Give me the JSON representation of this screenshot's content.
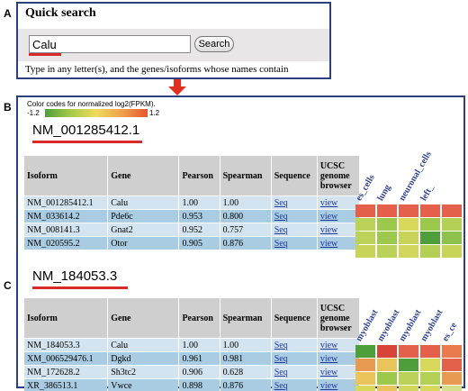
{
  "panels": {
    "a": "A",
    "b": "B",
    "c": "C"
  },
  "quick_search": {
    "title": "Quick search",
    "input_value": "Calu",
    "button_label": "Search",
    "help_text": "Type in any letter(s), and the genes/isoforms whose names contain"
  },
  "legend": {
    "caption": "Color codes for normalized log2(FPKM).",
    "min": "-1.2",
    "max": "1.2"
  },
  "columns": [
    "Isoform",
    "Gene",
    "Pearson",
    "Spearman",
    "Sequence",
    "UCSC genome browser"
  ],
  "colors": {
    "border": "#2c3f7e",
    "underline": "#d82a2a",
    "arrow": "#e0301e",
    "row_light": "#d3e4f0",
    "row_dark": "#a9cce3",
    "link": "#1f3a9e"
  },
  "result_b": {
    "accession": "NM_001285412.1",
    "rows": [
      {
        "isoform": "NM_001285412.1",
        "gene": "Calu",
        "pearson": "1.00",
        "spearman": "1.00",
        "seq": "Seq",
        "view": "view"
      },
      {
        "isoform": "NM_033614.2",
        "gene": "Pde6c",
        "pearson": "0.953",
        "spearman": "0.800",
        "seq": "Seq",
        "view": "view"
      },
      {
        "isoform": "NM_008141.3",
        "gene": "Gnat2",
        "pearson": "0.952",
        "spearman": "0.757",
        "seq": "Seq",
        "view": "view"
      },
      {
        "isoform": "NM_020595.2",
        "gene": "Otor",
        "pearson": "0.905",
        "spearman": "0.876",
        "seq": "Seq",
        "view": "view"
      }
    ],
    "heatmap_labels": [
      "es_cells",
      "lung",
      "neuronal_cells",
      "left_"
    ],
    "heatmap_colors": [
      [
        "#e4604a",
        "#e4604a",
        "#e4604a",
        "#e4604a",
        "#e4604a"
      ],
      [
        "#b9d257",
        "#9cc84c",
        "#d8d85a",
        "#9cc84c",
        "#b3d055"
      ],
      [
        "#b9d257",
        "#9cc84c",
        "#c7d458",
        "#4f9e3c",
        "#8fc24a"
      ],
      [
        "#c7d458",
        "#b9d257",
        "#d2d65a",
        "#b3d055",
        "#c7d458"
      ]
    ]
  },
  "result_c": {
    "accession": "NM_184053.3",
    "rows": [
      {
        "isoform": "NM_184053.3",
        "gene": "Calu",
        "pearson": "1.00",
        "spearman": "1.00",
        "seq": "Seq",
        "view": "view"
      },
      {
        "isoform": "XM_006529476.1",
        "gene": "Dgkd",
        "pearson": "0.961",
        "spearman": "0.981",
        "seq": "Seq",
        "view": "view"
      },
      {
        "isoform": "NM_172628.2",
        "gene": "Sh3tc2",
        "pearson": "0.906",
        "spearman": "0.628",
        "seq": "Seq",
        "view": "view"
      },
      {
        "isoform": "XR_386513.1",
        "gene": "Vwce",
        "pearson": "0.898",
        "spearman": "0.876",
        "seq": "Seq",
        "view": "view"
      }
    ],
    "heatmap_labels": [
      "myoblast",
      "myoblast",
      "myoblast",
      "myoblast",
      "es_ce"
    ],
    "heatmap_colors": [
      [
        "#4f9e3c",
        "#d64538",
        "#e4604a",
        "#e4604a",
        "#e87a4e"
      ],
      [
        "#e89a50",
        "#e8c45a",
        "#4f9e3c",
        "#d8d85a",
        "#e4604a"
      ],
      [
        "#e8c45a",
        "#9cc84c",
        "#b9d257",
        "#b3d055",
        "#e89a50"
      ],
      [
        "#d8d85a",
        "#e8c45a",
        "#d2d65a",
        "#d8d85a",
        "#d6e08a"
      ]
    ]
  }
}
